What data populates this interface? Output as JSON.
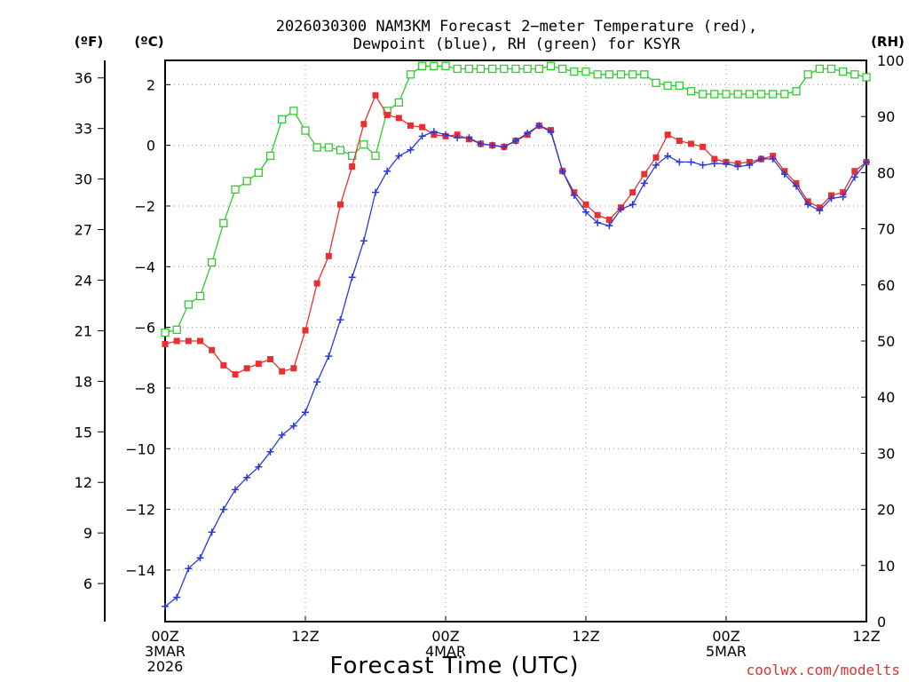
{
  "chart_data": {
    "type": "line",
    "title_line1": "2026030300 NAM3KM Forecast 2−meter Temperature (red),",
    "title_line2": "Dewpoint (blue), RH (green) for KSYR",
    "xlabel": "Forecast Time (UTC)",
    "credit": "coolwx.com/modelts",
    "units": {
      "fahrenheit": "(ºF)",
      "celsius": "(ºC)",
      "rh": "(RH)"
    },
    "x_range_hours": [
      0,
      60
    ],
    "x_ticks": [
      {
        "hour": 0,
        "lines": [
          "00Z",
          "3MAR",
          "2026"
        ]
      },
      {
        "hour": 12,
        "lines": [
          "12Z"
        ]
      },
      {
        "hour": 24,
        "lines": [
          "00Z",
          "4MAR"
        ]
      },
      {
        "hour": 36,
        "lines": [
          "12Z"
        ]
      },
      {
        "hour": 48,
        "lines": [
          "00Z",
          "5MAR"
        ]
      },
      {
        "hour": 60,
        "lines": [
          "12Z"
        ]
      }
    ],
    "celsius_axis": {
      "range": [
        -15.7,
        2.8
      ],
      "ticks": [
        2,
        0,
        -2,
        -4,
        -6,
        -8,
        -10,
        -12,
        -14
      ],
      "tick_labels": [
        "2",
        "0",
        "−2",
        "−4",
        "−6",
        "−8",
        "−10",
        "−12",
        "−14"
      ]
    },
    "fahrenheit_axis": {
      "ticks": [
        36,
        33,
        30,
        27,
        24,
        21,
        18,
        15,
        12,
        9,
        6
      ],
      "tick_labels": [
        "36",
        "33",
        "30",
        "27",
        "24",
        "21",
        "18",
        "15",
        "12",
        "9",
        "6"
      ]
    },
    "rh_axis": {
      "range": [
        0,
        100
      ],
      "ticks": [
        100,
        90,
        80,
        70,
        60,
        50,
        40,
        30,
        20,
        10,
        0
      ],
      "tick_labels": [
        "100",
        "90",
        "80",
        "70",
        "60",
        "50",
        "40",
        "30",
        "20",
        "10",
        "0"
      ]
    },
    "hours": [
      0,
      1,
      2,
      3,
      4,
      5,
      6,
      7,
      8,
      9,
      10,
      11,
      12,
      13,
      14,
      15,
      16,
      17,
      18,
      19,
      20,
      21,
      22,
      23,
      24,
      25,
      26,
      27,
      28,
      29,
      30,
      31,
      32,
      33,
      34,
      35,
      36,
      37,
      38,
      39,
      40,
      41,
      42,
      43,
      44,
      45,
      46,
      47,
      48,
      49,
      50,
      51,
      52,
      53,
      54,
      55,
      56,
      57,
      58,
      59,
      60
    ],
    "series": [
      {
        "name": "Temperature",
        "unit": "C",
        "color": "#e83030",
        "marker": "filled-square",
        "values": [
          -6.55,
          -6.45,
          -6.45,
          -6.45,
          -6.75,
          -7.25,
          -7.55,
          -7.35,
          -7.2,
          -7.05,
          -7.45,
          -7.35,
          -6.1,
          -4.55,
          -3.65,
          -1.95,
          -0.7,
          0.7,
          1.65,
          1.0,
          0.9,
          0.65,
          0.6,
          0.35,
          0.3,
          0.35,
          0.2,
          0.05,
          0.0,
          -0.05,
          0.15,
          0.35,
          0.65,
          0.5,
          -0.85,
          -1.55,
          -1.95,
          -2.3,
          -2.45,
          -2.05,
          -1.55,
          -0.95,
          -0.4,
          0.35,
          0.15,
          0.05,
          -0.05,
          -0.45,
          -0.55,
          -0.6,
          -0.55,
          -0.45,
          -0.35,
          -0.85,
          -1.25,
          -1.85,
          -2.05,
          -1.65,
          -1.55,
          -0.85,
          -0.55
        ]
      },
      {
        "name": "Dewpoint",
        "unit": "C",
        "color": "#2a3ad8",
        "marker": "plus",
        "values": [
          -15.2,
          -14.9,
          -13.95,
          -13.6,
          -12.75,
          -12.0,
          -11.35,
          -10.95,
          -10.6,
          -10.1,
          -9.55,
          -9.25,
          -8.8,
          -7.8,
          -6.95,
          -5.75,
          -4.35,
          -3.15,
          -1.55,
          -0.85,
          -0.35,
          -0.15,
          0.3,
          0.45,
          0.35,
          0.25,
          0.25,
          0.05,
          0.0,
          -0.05,
          0.15,
          0.4,
          0.65,
          0.45,
          -0.85,
          -1.65,
          -2.2,
          -2.55,
          -2.65,
          -2.1,
          -1.95,
          -1.25,
          -0.65,
          -0.35,
          -0.55,
          -0.55,
          -0.65,
          -0.6,
          -0.6,
          -0.7,
          -0.65,
          -0.45,
          -0.45,
          -0.95,
          -1.35,
          -1.95,
          -2.15,
          -1.75,
          -1.7,
          -1.05,
          -0.55
        ]
      },
      {
        "name": "RH",
        "unit": "%",
        "color": "#2ecc2e",
        "marker": "open-square",
        "values": [
          51.5,
          52.0,
          56.5,
          58.0,
          64.0,
          71.0,
          77.0,
          78.5,
          80.0,
          83.0,
          89.5,
          91.0,
          87.5,
          84.5,
          84.5,
          84.0,
          83.0,
          85.0,
          83.0,
          91.0,
          92.5,
          97.5,
          99.0,
          99.0,
          99.0,
          98.5,
          98.5,
          98.5,
          98.5,
          98.5,
          98.5,
          98.5,
          98.5,
          99.0,
          98.5,
          98.0,
          98.0,
          97.5,
          97.5,
          97.5,
          97.5,
          97.5,
          96.0,
          95.5,
          95.5,
          94.5,
          94.0,
          94.0,
          94.0,
          94.0,
          94.0,
          94.0,
          94.0,
          94.0,
          94.5,
          97.5,
          98.5,
          98.5,
          98.0,
          97.5,
          97.0
        ]
      }
    ]
  }
}
